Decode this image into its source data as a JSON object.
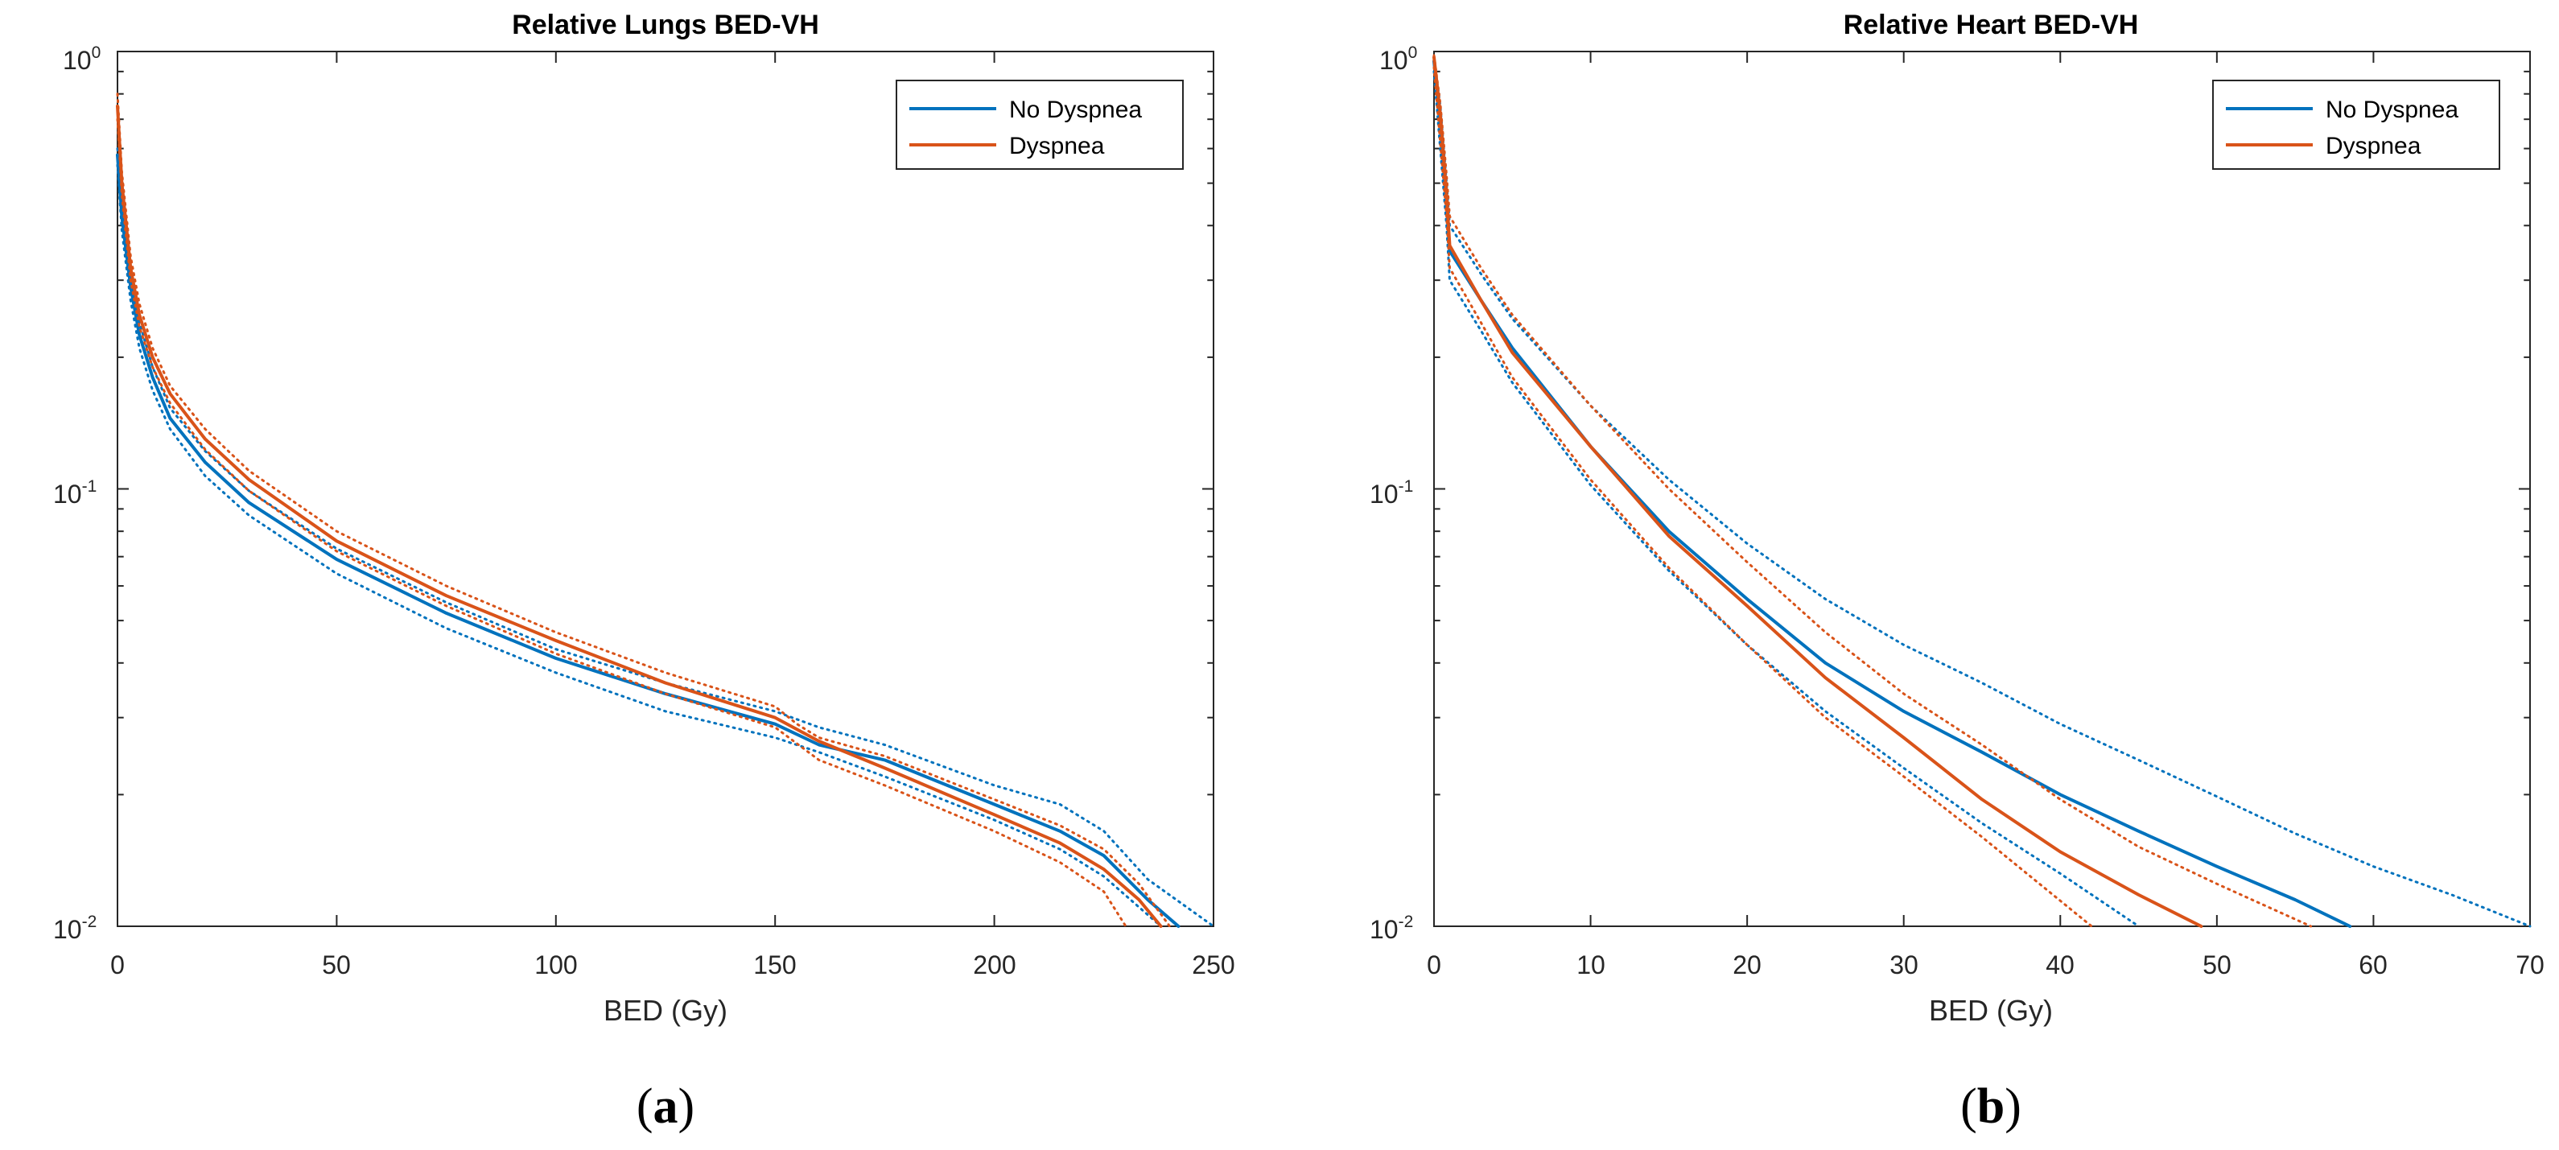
{
  "chart_data": [
    {
      "type": "line",
      "panel": "a",
      "title": "Relative Lungs BED-VH",
      "xlabel": "BED (Gy)",
      "ylabel": "",
      "xlim": [
        0,
        250
      ],
      "ylim": [
        0.01,
        1
      ],
      "yscale": "log",
      "xticks": [
        0,
        50,
        100,
        150,
        200,
        250
      ],
      "xtick_labels": [
        "0",
        "50",
        "100",
        "150",
        "200",
        "250"
      ],
      "yticks": [
        {
          "base": "10",
          "exp": "0",
          "value": 1
        },
        {
          "base": "10",
          "exp": "-1",
          "value": 0.1
        },
        {
          "base": "10",
          "exp": "-2",
          "value": 0.01
        }
      ],
      "legend": {
        "position": "top-right",
        "entries": [
          "No Dyspnea",
          "Dyspnea"
        ]
      },
      "series": [
        {
          "name": "No Dyspnea",
          "color": "#0072BD",
          "style": "solid",
          "x": [
            0,
            1,
            3,
            5,
            8,
            12,
            20,
            30,
            50,
            75,
            100,
            125,
            150,
            160,
            175,
            200,
            215,
            225,
            235,
            242
          ],
          "y": [
            0.58,
            0.42,
            0.29,
            0.225,
            0.18,
            0.145,
            0.115,
            0.093,
            0.069,
            0.052,
            0.041,
            0.034,
            0.029,
            0.026,
            0.024,
            0.019,
            0.0165,
            0.0145,
            0.0115,
            0.01
          ]
        },
        {
          "name": "No Dyspnea upper",
          "color": "#0072BD",
          "style": "dotted",
          "x": [
            0,
            1,
            3,
            5,
            8,
            12,
            20,
            30,
            50,
            75,
            100,
            125,
            150,
            160,
            175,
            200,
            215,
            225,
            235,
            250
          ],
          "y": [
            0.6,
            0.45,
            0.31,
            0.24,
            0.19,
            0.153,
            0.122,
            0.099,
            0.073,
            0.055,
            0.043,
            0.036,
            0.031,
            0.0285,
            0.026,
            0.021,
            0.019,
            0.0165,
            0.0128,
            0.01
          ]
        },
        {
          "name": "No Dyspnea lower",
          "color": "#0072BD",
          "style": "dotted",
          "x": [
            0,
            1,
            3,
            5,
            8,
            12,
            20,
            30,
            50,
            75,
            100,
            125,
            150,
            160,
            175,
            200,
            215,
            225,
            238
          ],
          "y": [
            0.55,
            0.39,
            0.27,
            0.21,
            0.168,
            0.137,
            0.107,
            0.087,
            0.064,
            0.048,
            0.038,
            0.031,
            0.027,
            0.025,
            0.022,
            0.0175,
            0.015,
            0.013,
            0.01
          ]
        },
        {
          "name": "Dyspnea",
          "color": "#D95319",
          "style": "solid",
          "x": [
            0,
            1,
            3,
            5,
            8,
            12,
            20,
            30,
            50,
            75,
            100,
            125,
            150,
            160,
            175,
            200,
            215,
            225,
            233,
            238
          ],
          "y": [
            0.75,
            0.5,
            0.32,
            0.25,
            0.2,
            0.165,
            0.13,
            0.105,
            0.076,
            0.057,
            0.045,
            0.036,
            0.03,
            0.0265,
            0.023,
            0.018,
            0.0155,
            0.0135,
            0.0115,
            0.01
          ]
        },
        {
          "name": "Dyspnea upper",
          "color": "#D95319",
          "style": "dotted",
          "x": [
            0,
            1,
            3,
            5,
            8,
            12,
            20,
            30,
            50,
            75,
            100,
            125,
            150,
            155,
            160,
            175,
            200,
            215,
            225,
            233,
            240
          ],
          "y": [
            0.8,
            0.53,
            0.34,
            0.265,
            0.21,
            0.172,
            0.137,
            0.11,
            0.08,
            0.06,
            0.047,
            0.038,
            0.0318,
            0.029,
            0.027,
            0.0245,
            0.0195,
            0.017,
            0.015,
            0.0125,
            0.01
          ]
        },
        {
          "name": "Dyspnea lower",
          "color": "#D95319",
          "style": "dotted",
          "x": [
            0,
            1,
            3,
            5,
            8,
            12,
            20,
            30,
            50,
            75,
            100,
            125,
            150,
            160,
            175,
            200,
            215,
            225,
            230
          ],
          "y": [
            0.7,
            0.47,
            0.3,
            0.235,
            0.19,
            0.157,
            0.123,
            0.099,
            0.072,
            0.054,
            0.042,
            0.034,
            0.0285,
            0.024,
            0.021,
            0.0165,
            0.014,
            0.012,
            0.01
          ]
        }
      ]
    },
    {
      "type": "line",
      "panel": "b",
      "title": "Relative Heart BED-VH",
      "xlabel": "BED (Gy)",
      "ylabel": "",
      "xlim": [
        0,
        70
      ],
      "ylim": [
        0.01,
        1
      ],
      "yscale": "log",
      "xticks": [
        0,
        10,
        20,
        30,
        40,
        50,
        60,
        70
      ],
      "xtick_labels": [
        "0",
        "10",
        "20",
        "30",
        "40",
        "50",
        "60",
        "70"
      ],
      "yticks": [
        {
          "base": "10",
          "exp": "0",
          "value": 1
        },
        {
          "base": "10",
          "exp": "-1",
          "value": 0.1
        },
        {
          "base": "10",
          "exp": "-2",
          "value": 0.01
        }
      ],
      "legend": {
        "position": "top-right",
        "entries": [
          "No Dyspnea",
          "Dyspnea"
        ]
      },
      "series": [
        {
          "name": "No Dyspnea",
          "color": "#0072BD",
          "style": "solid",
          "x": [
            0,
            0.4,
            0.8,
            1,
            3,
            5,
            10,
            15,
            20,
            25,
            30,
            35,
            40,
            45,
            50,
            55,
            58.5
          ],
          "y": [
            0.95,
            0.7,
            0.45,
            0.35,
            0.27,
            0.21,
            0.125,
            0.08,
            0.056,
            0.04,
            0.031,
            0.025,
            0.02,
            0.0165,
            0.0137,
            0.0115,
            0.01
          ]
        },
        {
          "name": "No Dyspnea upper",
          "color": "#0072BD",
          "style": "dotted",
          "x": [
            0,
            0.4,
            0.8,
            1,
            3,
            5,
            10,
            15,
            20,
            25,
            30,
            35,
            40,
            45,
            50,
            55,
            60,
            65,
            70
          ],
          "y": [
            0.97,
            0.75,
            0.5,
            0.4,
            0.31,
            0.245,
            0.155,
            0.105,
            0.075,
            0.056,
            0.044,
            0.036,
            0.029,
            0.024,
            0.0198,
            0.0163,
            0.0137,
            0.0118,
            0.01
          ]
        },
        {
          "name": "No Dyspnea lower",
          "color": "#0072BD",
          "style": "dotted",
          "x": [
            0,
            0.4,
            0.8,
            1,
            3,
            5,
            10,
            15,
            20,
            25,
            30,
            35,
            40,
            45
          ],
          "y": [
            0.9,
            0.6,
            0.4,
            0.3,
            0.23,
            0.175,
            0.102,
            0.065,
            0.044,
            0.031,
            0.023,
            0.0172,
            0.0132,
            0.01
          ]
        },
        {
          "name": "Dyspnea",
          "color": "#D95319",
          "style": "solid",
          "x": [
            0,
            0.4,
            0.8,
            1,
            3,
            5,
            10,
            15,
            20,
            25,
            30,
            35,
            40,
            45,
            49
          ],
          "y": [
            0.97,
            0.72,
            0.47,
            0.36,
            0.27,
            0.205,
            0.125,
            0.078,
            0.054,
            0.037,
            0.027,
            0.0195,
            0.0148,
            0.0118,
            0.01
          ]
        },
        {
          "name": "Dyspnea upper",
          "color": "#D95319",
          "style": "dotted",
          "x": [
            0,
            0.4,
            0.8,
            1,
            3,
            5,
            10,
            15,
            20,
            25,
            30,
            35,
            40,
            45,
            50,
            56
          ],
          "y": [
            0.98,
            0.76,
            0.52,
            0.42,
            0.32,
            0.25,
            0.155,
            0.1,
            0.068,
            0.047,
            0.034,
            0.026,
            0.0195,
            0.0152,
            0.0125,
            0.01
          ]
        },
        {
          "name": "Dyspnea lower",
          "color": "#D95319",
          "style": "dotted",
          "x": [
            0,
            0.4,
            0.8,
            1,
            3,
            5,
            10,
            15,
            20,
            25,
            30,
            35,
            42
          ],
          "y": [
            0.92,
            0.62,
            0.42,
            0.32,
            0.24,
            0.18,
            0.105,
            0.066,
            0.044,
            0.03,
            0.022,
            0.016,
            0.01
          ]
        }
      ]
    }
  ],
  "panel_labels": [
    {
      "open": "(",
      "letter": "a",
      "close": ")"
    },
    {
      "open": "(",
      "letter": "b",
      "close": ")"
    }
  ]
}
